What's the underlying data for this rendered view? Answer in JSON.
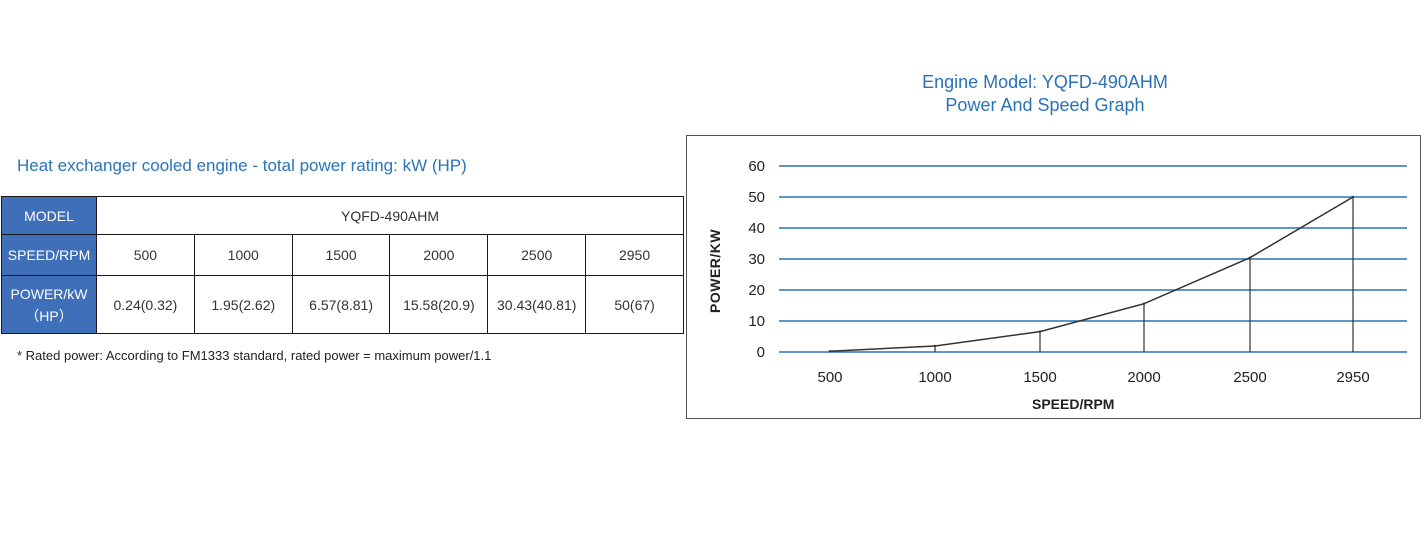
{
  "table": {
    "heading": "Heat exchanger cooled engine - total power rating: kW (HP)",
    "model_label": "MODEL",
    "model_value": "YQFD-490AHM",
    "speed_label": "SPEED/RPM",
    "power_label_line1": "POWER/kW",
    "power_label_line2": "（HP）",
    "speeds": [
      "500",
      "1000",
      "1500",
      "2000",
      "2500",
      "2950"
    ],
    "powers": [
      "0.24(0.32)",
      "1.95(2.62)",
      "6.57(8.81)",
      "15.58(20.9)",
      "30.43(40.81)",
      "50(67)"
    ],
    "footnote": "* Rated power: According to FM1333 standard, rated power = maximum power/1.1"
  },
  "chart": {
    "title_line1": "Engine Model: YQFD-490AHM",
    "title_line2": "Power And Speed Graph"
  },
  "chart_data": {
    "type": "line",
    "title": "Engine Model: YQFD-490AHM Power And Speed Graph",
    "xlabel": "SPEED/RPM",
    "ylabel": "POWER/KW",
    "categories": [
      "500",
      "1000",
      "1500",
      "2000",
      "2500",
      "2950"
    ],
    "values": [
      0.24,
      1.95,
      6.57,
      15.58,
      30.43,
      50
    ],
    "ylim": [
      0,
      60
    ],
    "yticks": [
      0,
      10,
      20,
      30,
      40,
      50,
      60
    ],
    "grid": true,
    "colors": {
      "grid": "#2a73b8",
      "line": "#333333",
      "title": "#2a73b8",
      "header": "#3f6fb8"
    }
  }
}
